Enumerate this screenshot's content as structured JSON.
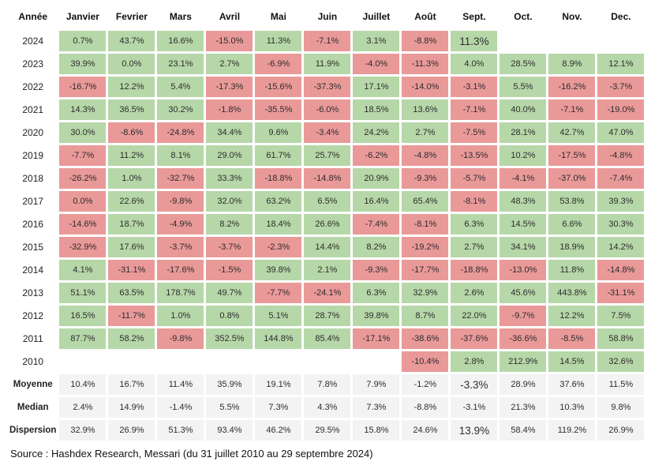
{
  "colors": {
    "positive_bg": "#b6d7a8",
    "negative_bg": "#ea9999",
    "summary_bg": "#f3f3f3",
    "text": "#2d2d2d"
  },
  "source_note": "Source : Hashdex Research, Messari (du 31 juillet 2010 au 29 septembre 2024)",
  "chart_data": {
    "type": "table",
    "subtype": "monthly-returns-heatmap",
    "title": "",
    "legend": {
      "positive": "green",
      "negative": "red",
      "summary": "gray"
    },
    "columns": [
      "Année",
      "Janvier",
      "Fevrier",
      "Mars",
      "Avril",
      "Mai",
      "Juin",
      "Juillet",
      "Août",
      "Sept.",
      "Oct.",
      "Nov.",
      "Dec."
    ],
    "rows": [
      {
        "label": "2024",
        "kind": "year",
        "values": [
          "0.7%",
          "43.7%",
          "16.6%",
          "-15.0%",
          "11.3%",
          "-7.1%",
          "3.1%",
          "-8.8%",
          "11.3%",
          "",
          "",
          ""
        ],
        "colors": [
          "g",
          "g",
          "g",
          "r",
          "g",
          "r",
          "g",
          "r",
          "g",
          "",
          "",
          ""
        ],
        "large": [
          8
        ]
      },
      {
        "label": "2023",
        "kind": "year",
        "values": [
          "39.9%",
          "0.0%",
          "23.1%",
          "2.7%",
          "-6.9%",
          "11.9%",
          "-4.0%",
          "-11.3%",
          "4.0%",
          "28.5%",
          "8.9%",
          "12.1%"
        ],
        "colors": [
          "g",
          "g",
          "g",
          "g",
          "r",
          "g",
          "r",
          "r",
          "g",
          "g",
          "g",
          "g"
        ]
      },
      {
        "label": "2022",
        "kind": "year",
        "values": [
          "-16.7%",
          "12.2%",
          "5.4%",
          "-17.3%",
          "-15.6%",
          "-37.3%",
          "17.1%",
          "-14.0%",
          "-3.1%",
          "5.5%",
          "-16.2%",
          "-3.7%"
        ],
        "colors": [
          "r",
          "g",
          "g",
          "r",
          "r",
          "r",
          "g",
          "r",
          "r",
          "g",
          "r",
          "r"
        ]
      },
      {
        "label": "2021",
        "kind": "year",
        "values": [
          "14.3%",
          "36.5%",
          "30.2%",
          "-1.8%",
          "-35.5%",
          "-6.0%",
          "18.5%",
          "13.6%",
          "-7.1%",
          "40.0%",
          "-7.1%",
          "-19.0%"
        ],
        "colors": [
          "g",
          "g",
          "g",
          "r",
          "r",
          "r",
          "g",
          "g",
          "r",
          "g",
          "r",
          "r"
        ]
      },
      {
        "label": "2020",
        "kind": "year",
        "values": [
          "30.0%",
          "-8.6%",
          "-24.8%",
          "34.4%",
          "9.6%",
          "-3.4%",
          "24.2%",
          "2.7%",
          "-7.5%",
          "28.1%",
          "42.7%",
          "47.0%"
        ],
        "colors": [
          "g",
          "r",
          "r",
          "g",
          "g",
          "r",
          "g",
          "g",
          "r",
          "g",
          "g",
          "g"
        ]
      },
      {
        "label": "2019",
        "kind": "year",
        "values": [
          "-7.7%",
          "11.2%",
          "8.1%",
          "29.0%",
          "61.7%",
          "25.7%",
          "-6.2%",
          "-4.8%",
          "-13.5%",
          "10.2%",
          "-17.5%",
          "-4.8%"
        ],
        "colors": [
          "r",
          "g",
          "g",
          "g",
          "g",
          "g",
          "r",
          "r",
          "r",
          "g",
          "r",
          "r"
        ]
      },
      {
        "label": "2018",
        "kind": "year",
        "values": [
          "-26.2%",
          "1.0%",
          "-32.7%",
          "33.3%",
          "-18.8%",
          "-14.8%",
          "20.9%",
          "-9.3%",
          "-5.7%",
          "-4.1%",
          "-37.0%",
          "-7.4%"
        ],
        "colors": [
          "r",
          "g",
          "r",
          "g",
          "r",
          "r",
          "g",
          "r",
          "r",
          "r",
          "r",
          "r"
        ]
      },
      {
        "label": "2017",
        "kind": "year",
        "values": [
          "0.0%",
          "22.6%",
          "-9.8%",
          "32.0%",
          "63.2%",
          "6.5%",
          "16.4%",
          "65.4%",
          "-8.1%",
          "48.3%",
          "53.8%",
          "39.3%"
        ],
        "colors": [
          "r",
          "g",
          "r",
          "g",
          "g",
          "g",
          "g",
          "g",
          "r",
          "g",
          "g",
          "g"
        ]
      },
      {
        "label": "2016",
        "kind": "year",
        "values": [
          "-14.6%",
          "18.7%",
          "-4.9%",
          "8.2%",
          "18.4%",
          "26.6%",
          "-7.4%",
          "-8.1%",
          "6.3%",
          "14.5%",
          "6.6%",
          "30.3%"
        ],
        "colors": [
          "r",
          "g",
          "r",
          "g",
          "g",
          "g",
          "r",
          "r",
          "g",
          "g",
          "g",
          "g"
        ]
      },
      {
        "label": "2015",
        "kind": "year",
        "values": [
          "-32.9%",
          "17.6%",
          "-3.7%",
          "-3.7%",
          "-2.3%",
          "14.4%",
          "8.2%",
          "-19.2%",
          "2.7%",
          "34.1%",
          "18.9%",
          "14.2%"
        ],
        "colors": [
          "r",
          "g",
          "r",
          "r",
          "r",
          "g",
          "g",
          "r",
          "g",
          "g",
          "g",
          "g"
        ]
      },
      {
        "label": "2014",
        "kind": "year",
        "values": [
          "4.1%",
          "-31.1%",
          "-17.6%",
          "-1.5%",
          "39.8%",
          "2.1%",
          "-9.3%",
          "-17.7%",
          "-18.8%",
          "-13.0%",
          "11.8%",
          "-14.8%"
        ],
        "colors": [
          "g",
          "r",
          "r",
          "r",
          "g",
          "g",
          "r",
          "r",
          "r",
          "r",
          "g",
          "r"
        ]
      },
      {
        "label": "2013",
        "kind": "year",
        "values": [
          "51.1%",
          "63.5%",
          "178.7%",
          "49.7%",
          "-7.7%",
          "-24.1%",
          "6.3%",
          "32.9%",
          "2.6%",
          "45.6%",
          "443.8%",
          "-31.1%"
        ],
        "colors": [
          "g",
          "g",
          "g",
          "g",
          "r",
          "r",
          "g",
          "g",
          "g",
          "g",
          "g",
          "r"
        ]
      },
      {
        "label": "2012",
        "kind": "year",
        "values": [
          "16.5%",
          "-11.7%",
          "1.0%",
          "0.8%",
          "5.1%",
          "28.7%",
          "39.8%",
          "8.7%",
          "22.0%",
          "-9.7%",
          "12.2%",
          "7.5%"
        ],
        "colors": [
          "g",
          "r",
          "g",
          "g",
          "g",
          "g",
          "g",
          "g",
          "g",
          "r",
          "g",
          "g"
        ]
      },
      {
        "label": "2011",
        "kind": "year",
        "values": [
          "87.7%",
          "58.2%",
          "-9.8%",
          "352.5%",
          "144.8%",
          "85.4%",
          "-17.1%",
          "-38.6%",
          "-37.6%",
          "-36.6%",
          "-8.5%",
          "58.8%"
        ],
        "colors": [
          "g",
          "g",
          "r",
          "g",
          "g",
          "g",
          "r",
          "r",
          "r",
          "r",
          "r",
          "g"
        ]
      },
      {
        "label": "2010",
        "kind": "year",
        "values": [
          "",
          "",
          "",
          "",
          "",
          "",
          "",
          "-10.4%",
          "2.8%",
          "212.9%",
          "14.5%",
          "32.6%"
        ],
        "colors": [
          "",
          "",
          "",
          "",
          "",
          "",
          "",
          "r",
          "g",
          "g",
          "g",
          "g"
        ]
      },
      {
        "label": "Moyenne",
        "kind": "summary",
        "values": [
          "10.4%",
          "16.7%",
          "11.4%",
          "35.9%",
          "19.1%",
          "7.8%",
          "7.9%",
          "-1.2%",
          "-3.3%",
          "28.9%",
          "37.6%",
          "11.5%"
        ],
        "colors": [
          "s",
          "s",
          "s",
          "s",
          "s",
          "s",
          "s",
          "s",
          "s",
          "s",
          "s",
          "s"
        ],
        "large": [
          8
        ]
      },
      {
        "label": "Median",
        "kind": "summary",
        "values": [
          "2.4%",
          "14.9%",
          "-1.4%",
          "5.5%",
          "7.3%",
          "4.3%",
          "7.3%",
          "-8.8%",
          "-3.1%",
          "21.3%",
          "10.3%",
          "9.8%"
        ],
        "colors": [
          "s",
          "s",
          "s",
          "s",
          "s",
          "s",
          "s",
          "s",
          "s",
          "s",
          "s",
          "s"
        ]
      },
      {
        "label": "Dispersion",
        "kind": "summary",
        "values": [
          "32.9%",
          "26.9%",
          "51.3%",
          "93.4%",
          "46.2%",
          "29.5%",
          "15.8%",
          "24.6%",
          "13.9%",
          "58.4%",
          "119.2%",
          "26.9%"
        ],
        "colors": [
          "s",
          "s",
          "s",
          "s",
          "s",
          "s",
          "s",
          "s",
          "s",
          "s",
          "s",
          "s"
        ],
        "large": [
          8
        ]
      }
    ]
  }
}
